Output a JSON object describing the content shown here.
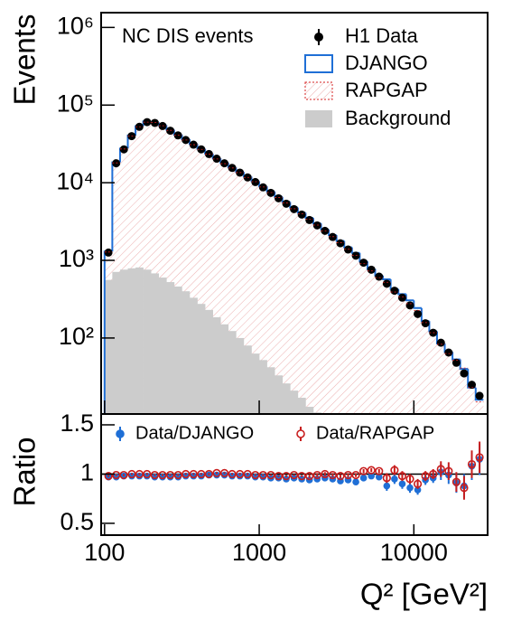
{
  "chart_data": [
    {
      "type": "histogram",
      "ylabel": "Events",
      "annotation": "NC DIS events",
      "log_x": true,
      "log_y": true,
      "bins": [
        100,
        112.2,
        125.9,
        141.3,
        158.5,
        177.8,
        199.5,
        223.9,
        251.2,
        281.8,
        316.2,
        354.8,
        398.1,
        446.7,
        501.2,
        562.3,
        631.0,
        707.9,
        794.3,
        891.3,
        1000,
        1122,
        1259,
        1413,
        1585,
        1778,
        1995,
        2239,
        2512,
        2818,
        3162,
        3548,
        3981,
        4467,
        5012,
        5623,
        6310,
        7079,
        7943,
        8913,
        10000,
        11220,
        12589,
        14125,
        15849,
        17783,
        19953,
        22387,
        25119,
        28184
      ],
      "xlim": [
        95,
        30000
      ],
      "xticks": [
        100,
        1000,
        10000
      ],
      "ylim": [
        10.5,
        1550000
      ],
      "yticks": [
        {
          "value": 100,
          "label": "10²"
        },
        {
          "value": 1000,
          "label": "10³"
        },
        {
          "value": 10000,
          "label": "10⁴"
        },
        {
          "value": 100000,
          "label": "10⁵"
        },
        {
          "value": 1000000,
          "label": "10⁶"
        }
      ],
      "series": [
        {
          "name": "H1 Data",
          "color": "#000000",
          "style": "points",
          "values": [
            1260,
            17800,
            26900,
            39800,
            52500,
            60300,
            58900,
            53700,
            46800,
            40700,
            35500,
            30900,
            26900,
            23400,
            20400,
            17800,
            15500,
            13500,
            11700,
            10200,
            8710,
            7410,
            6310,
            5370,
            4570,
            3890,
            3310,
            2820,
            2400,
            2000,
            1660,
            1380,
            1150,
            933,
            759,
            617,
            501,
            407,
            331,
            263,
            204,
            155,
            117,
            87,
            65,
            48,
            35,
            25,
            18
          ]
        },
        {
          "name": "DJANGO",
          "color": "#1f6fd6",
          "style": "step",
          "values": [
            1300,
            18300,
            27500,
            40600,
            53500,
            61500,
            60500,
            55200,
            48100,
            41700,
            36300,
            31500,
            27300,
            23700,
            20600,
            18100,
            15800,
            13800,
            12000,
            10500,
            9000,
            7700,
            6570,
            5650,
            4780,
            4100,
            3520,
            2980,
            2500,
            2110,
            1780,
            1470,
            1250,
            970,
            776,
            636,
            570,
            428,
            368,
            306,
            243,
            165,
            122,
            85,
            66,
            53,
            40,
            23,
            16
          ]
        },
        {
          "name": "RAPGAP",
          "color": "#d62020",
          "style": "hatched",
          "values": [
            1280,
            18000,
            27200,
            39800,
            52500,
            60300,
            59500,
            54200,
            47300,
            41100,
            35500,
            30900,
            26900,
            23400,
            20200,
            17600,
            15500,
            13500,
            11700,
            10300,
            8800,
            7480,
            6440,
            5480,
            4620,
            3970,
            3380,
            2850,
            2400,
            2020,
            1690,
            1390,
            1160,
            906,
            730,
            599,
            522,
            391,
            338,
            277,
            227,
            158,
            117,
            83,
            63,
            52,
            41,
            23,
            15
          ]
        },
        {
          "name": "Background",
          "color": "#cccccc",
          "style": "filled",
          "values": [
            560,
            710,
            760,
            790,
            810,
            760,
            680,
            600,
            525,
            460,
            400,
            330,
            275,
            230,
            185,
            150,
            123,
            100,
            80,
            63,
            52,
            42,
            33,
            26,
            21,
            17,
            13,
            11,
            null,
            null,
            null,
            null,
            null,
            null,
            null,
            null,
            null,
            null,
            null,
            null,
            null,
            null,
            null,
            null,
            null,
            null,
            null,
            null,
            null
          ]
        }
      ]
    },
    {
      "type": "errorbar",
      "ylabel": "Ratio",
      "xlabel": "Q² [GeV²]",
      "log_x": true,
      "x": [
        106,
        119,
        133,
        150,
        168,
        188,
        211,
        237,
        266,
        299,
        335,
        376,
        422,
        473,
        531,
        596,
        668,
        750,
        841,
        944,
        1059,
        1189,
        1334,
        1496,
        1679,
        1884,
        2113,
        2371,
        2661,
        2985,
        3350,
        3758,
        4217,
        4732,
        5309,
        5957,
        6683,
        7499,
        8414,
        9441,
        10593,
        11885,
        13335,
        14962,
        16788,
        18836,
        21135,
        23714,
        26607
      ],
      "xlim": [
        95,
        30000
      ],
      "xticks": [
        100,
        1000,
        10000
      ],
      "ylim": [
        0.38,
        1.61
      ],
      "yticks": [
        0.5,
        1,
        1.5
      ],
      "reference_line": 1,
      "series": [
        {
          "name": "Data/DJANGO",
          "color": "#1f6fd6",
          "marker": "filled",
          "values": [
            0.97,
            0.97,
            0.98,
            0.98,
            0.98,
            0.98,
            0.97,
            0.97,
            0.97,
            0.97,
            0.98,
            0.98,
            0.98,
            0.99,
            0.99,
            0.99,
            0.98,
            0.98,
            0.98,
            0.97,
            0.97,
            0.96,
            0.96,
            0.95,
            0.96,
            0.95,
            0.94,
            0.95,
            0.96,
            0.95,
            0.93,
            0.94,
            0.92,
            0.96,
            0.98,
            0.97,
            0.88,
            0.95,
            0.9,
            0.86,
            0.84,
            0.94,
            0.96,
            1.02,
            0.99,
            0.91,
            0.88,
            1.08,
            1.15
          ],
          "errors": [
            0.01,
            0.01,
            0.01,
            0.01,
            0.01,
            0.01,
            0.01,
            0.01,
            0.01,
            0.01,
            0.01,
            0.01,
            0.01,
            0.01,
            0.01,
            0.01,
            0.01,
            0.01,
            0.01,
            0.01,
            0.01,
            0.01,
            0.01,
            0.01,
            0.01,
            0.01,
            0.02,
            0.02,
            0.02,
            0.02,
            0.02,
            0.02,
            0.02,
            0.02,
            0.02,
            0.02,
            0.05,
            0.05,
            0.05,
            0.05,
            0.05,
            0.05,
            0.05,
            0.08,
            0.09,
            0.1,
            0.12,
            0.14,
            0.16
          ]
        },
        {
          "name": "Data/RAPGAP",
          "color": "#c81e1e",
          "marker": "open",
          "values": [
            0.98,
            0.99,
            0.99,
            1.0,
            1.0,
            1.0,
            0.99,
            0.99,
            0.99,
            0.99,
            1.0,
            1.0,
            1.0,
            1.0,
            1.01,
            1.01,
            1.0,
            1.0,
            1.0,
            0.99,
            0.99,
            0.99,
            0.98,
            0.98,
            0.99,
            0.98,
            0.98,
            0.99,
            1.0,
            0.99,
            0.98,
            0.99,
            0.99,
            1.03,
            1.04,
            1.03,
            0.96,
            1.04,
            0.98,
            0.95,
            0.9,
            0.98,
            1.0,
            1.05,
            1.03,
            0.92,
            0.86,
            1.1,
            1.17
          ],
          "errors": [
            0.01,
            0.01,
            0.01,
            0.01,
            0.01,
            0.01,
            0.01,
            0.01,
            0.01,
            0.01,
            0.01,
            0.01,
            0.01,
            0.01,
            0.01,
            0.01,
            0.01,
            0.01,
            0.01,
            0.01,
            0.01,
            0.01,
            0.01,
            0.01,
            0.01,
            0.01,
            0.02,
            0.02,
            0.02,
            0.02,
            0.02,
            0.02,
            0.02,
            0.02,
            0.02,
            0.02,
            0.05,
            0.05,
            0.05,
            0.05,
            0.05,
            0.05,
            0.05,
            0.08,
            0.09,
            0.1,
            0.12,
            0.14,
            0.16
          ]
        }
      ]
    }
  ]
}
